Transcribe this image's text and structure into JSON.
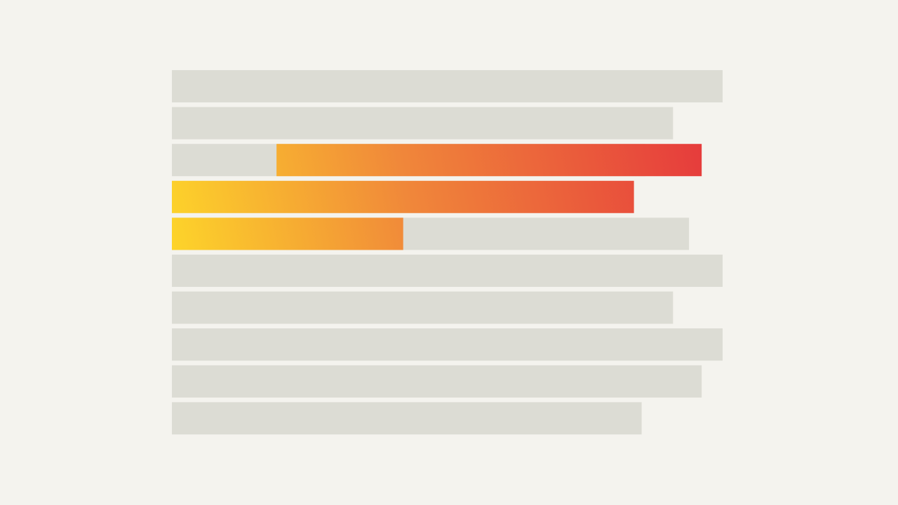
{
  "colors": {
    "background": "#f4f3ee",
    "skeleton": "#dcdcd4",
    "gradient_start": "#fdd42a",
    "gradient_mid": "#f0873a",
    "gradient_end": "#e63c3c"
  },
  "rows": [
    {
      "base_fill": 1.0,
      "highlight": null
    },
    {
      "base_fill": 0.91,
      "highlight": null
    },
    {
      "base_fill": 0.86,
      "highlight": {
        "start": 0.19,
        "end": 0.962
      }
    },
    {
      "base_fill": 0.0,
      "highlight": {
        "start": 0.0,
        "end": 0.839
      }
    },
    {
      "base_fill": 0.939,
      "highlight": {
        "start": 0.0,
        "end": 0.42
      }
    },
    {
      "base_fill": 1.0,
      "highlight": null
    },
    {
      "base_fill": 0.91,
      "highlight": null
    },
    {
      "base_fill": 1.0,
      "highlight": null
    },
    {
      "base_fill": 0.962,
      "highlight": null
    },
    {
      "base_fill": 0.853,
      "highlight": null
    }
  ]
}
